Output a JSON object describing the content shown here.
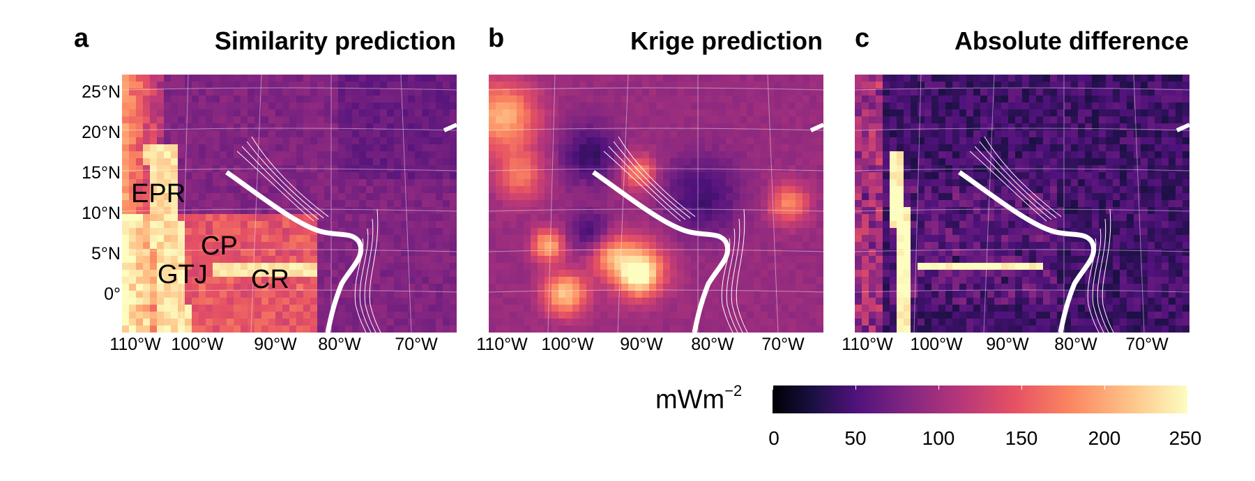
{
  "panels": [
    {
      "letter": "a",
      "title": "Similarity prediction",
      "kind": "similarity"
    },
    {
      "letter": "b",
      "title": "Krige prediction",
      "kind": "krige"
    },
    {
      "letter": "c",
      "title": "Absolute difference",
      "kind": "difference"
    }
  ],
  "lat_labels": [
    "25°N",
    "20°N",
    "15°N",
    "10°N",
    "5°N",
    "0°"
  ],
  "lon_labels": [
    "110°W",
    "100°W",
    "90°W",
    "80°W",
    "70°W"
  ],
  "features": {
    "epr": "EPR",
    "cp": "CP",
    "gtj": "GTJ",
    "cr": "CR"
  },
  "colorbar": {
    "unit_base": "mWm",
    "unit_exp": "−2",
    "ticks": [
      "0",
      "50",
      "100",
      "150",
      "200",
      "250"
    ],
    "colormap": "magma",
    "range": [
      0,
      250
    ]
  }
}
